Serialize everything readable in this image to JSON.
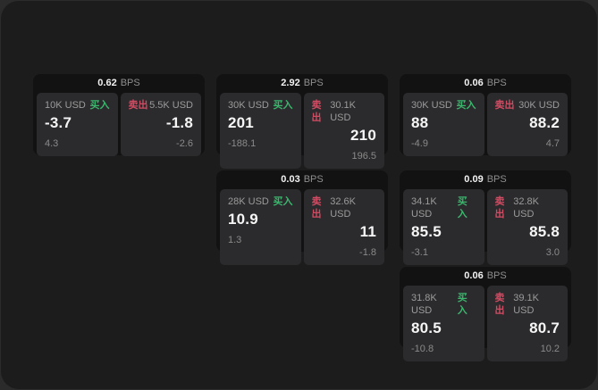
{
  "page": {
    "unit_label": "BPS",
    "buy_label": "买入",
    "sell_label": "卖出"
  },
  "colors": {
    "outer_bg": "#2b2b2b",
    "panel_bg": "#1c1c1c",
    "card_bg": "#121212",
    "tile_bg": "#2b2b2d",
    "buy_green": "#3cb56d",
    "sell_red": "#d14b62",
    "price_text": "#f6f6f6",
    "muted_text": "#8a8a8a"
  },
  "cards": [
    {
      "bps": "0.62",
      "buy": {
        "amount": "10K USD",
        "price": "-3.7",
        "delta": "4.3"
      },
      "sell": {
        "amount": "5.5K USD",
        "price": "-1.8",
        "delta": "-2.6"
      }
    },
    {
      "bps": "2.92",
      "buy": {
        "amount": "30K USD",
        "price": "201",
        "delta": "-188.1"
      },
      "sell": {
        "amount": "30.1K USD",
        "price": "210",
        "delta": "196.5"
      }
    },
    {
      "bps": "0.06",
      "buy": {
        "amount": "30K USD",
        "price": "88",
        "delta": "-4.9"
      },
      "sell": {
        "amount": "30K USD",
        "price": "88.2",
        "delta": "4.7"
      }
    },
    {
      "bps": "0.03",
      "buy": {
        "amount": "28K USD",
        "price": "10.9",
        "delta": "1.3"
      },
      "sell": {
        "amount": "32.6K USD",
        "price": "11",
        "delta": "-1.8"
      }
    },
    {
      "bps": "0.09",
      "buy": {
        "amount": "34.1K USD",
        "price": "85.5",
        "delta": "-3.1"
      },
      "sell": {
        "amount": "32.8K USD",
        "price": "85.8",
        "delta": "3.0"
      }
    },
    {
      "bps": "0.06",
      "buy": {
        "amount": "31.8K USD",
        "price": "80.5",
        "delta": "-10.8"
      },
      "sell": {
        "amount": "39.1K USD",
        "price": "80.7",
        "delta": "10.2"
      }
    }
  ]
}
